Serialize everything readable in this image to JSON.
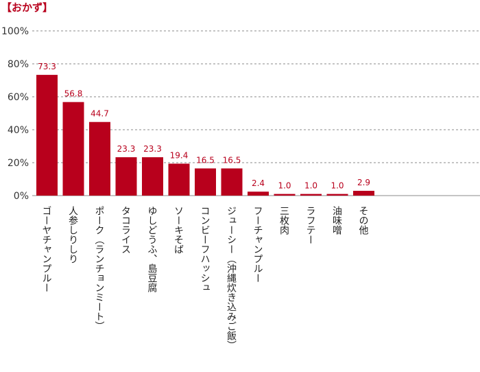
{
  "heading": "【おかず】",
  "chart_data": {
    "type": "bar",
    "categories": [
      "ゴーヤチャンプルー",
      "人参しりしり",
      "ポーク（ランチョンミート）",
      "タコライス",
      "ゆしどうふ、島豆腐",
      "ソーキそば",
      "コンビーフハッシュ",
      "ジューシー（沖縄炊き込みご飯）",
      "フーチャンプルー",
      "三枚肉",
      "ラフテー",
      "油味噌",
      "その他"
    ],
    "values": [
      73.3,
      56.8,
      44.7,
      23.3,
      23.3,
      19.4,
      16.5,
      16.5,
      2.4,
      1.0,
      1.0,
      1.0,
      2.9
    ],
    "value_labels": [
      "73.3",
      "56.8",
      "44.7",
      "23.3",
      "23.3",
      "19.4",
      "16.5",
      "16.5",
      "2.4",
      "1.0",
      "1.0",
      "1.0",
      "2.9"
    ],
    "yticks": [
      "0%",
      "20%",
      "40%",
      "60%",
      "80%",
      "100%"
    ],
    "ylim": [
      0,
      100
    ],
    "grid": true,
    "bar_color": "#b8001c",
    "grid_color": "#8a8a8a"
  }
}
